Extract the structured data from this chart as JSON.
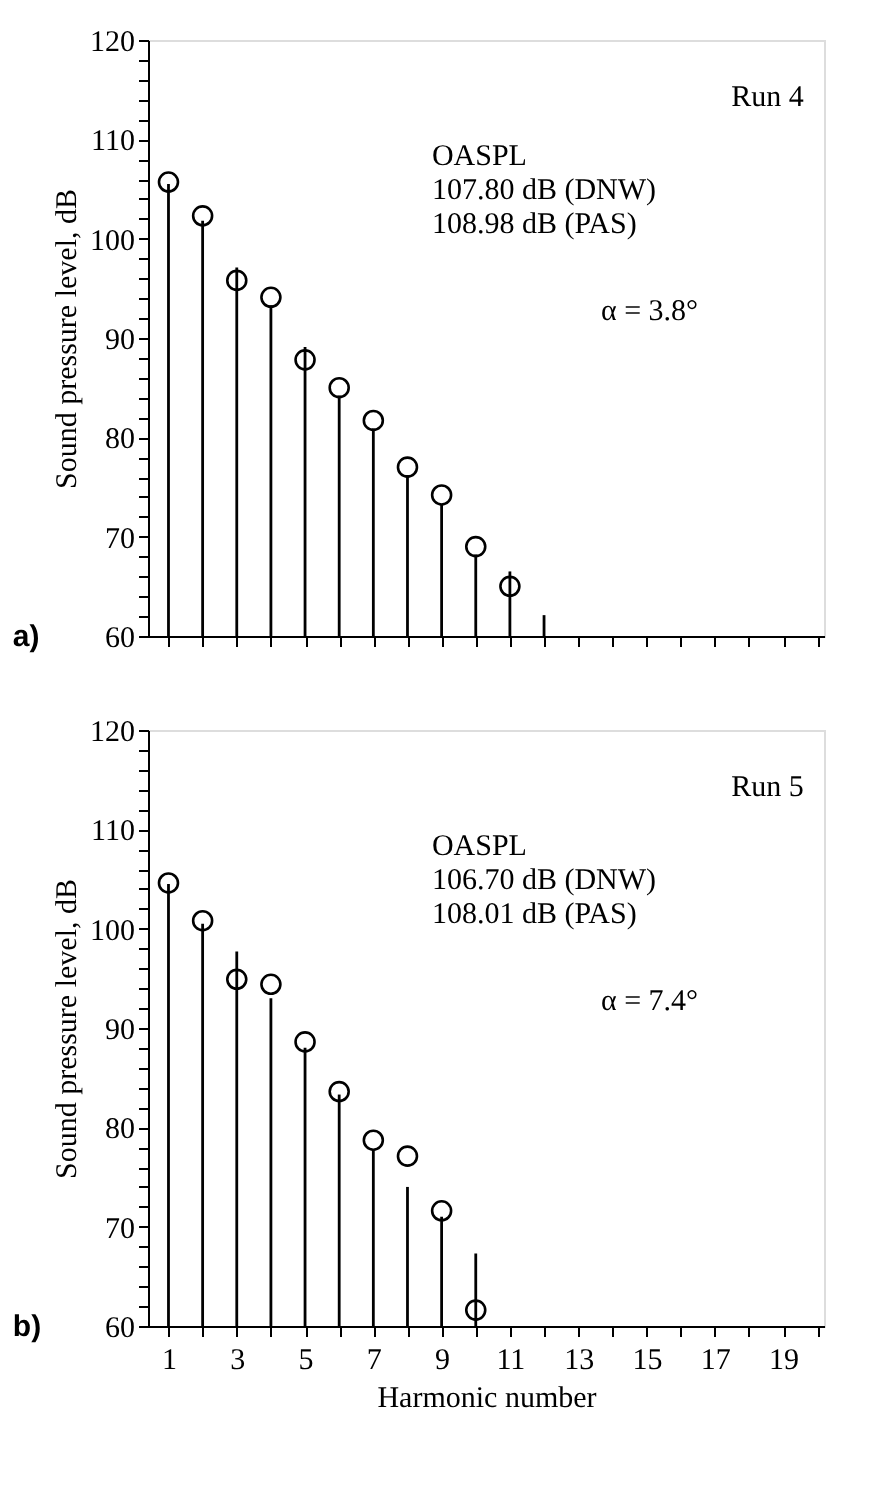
{
  "chart_data": [
    {
      "type": "bar",
      "ylabel": "Sound pressure level, dB",
      "annotations": [
        "Run 4",
        "OASPL\n107.80 dB (DNW)\n108.98 dB (PAS)",
        "α = 3.8°",
        "a)"
      ],
      "xlim": [
        0.4,
        20.2
      ],
      "ylim": [
        60,
        120
      ],
      "xticks": [
        1,
        {
          "value": 2,
          "label": null
        },
        3,
        {
          "value": 4,
          "label": null
        },
        5,
        {
          "value": 6,
          "label": null
        },
        7,
        {
          "value": 8,
          "label": null
        },
        9,
        {
          "value": 10,
          "label": null
        },
        11,
        {
          "value": 12,
          "label": null
        },
        13,
        {
          "value": 14,
          "label": null
        },
        15,
        {
          "value": 16,
          "label": null
        },
        17,
        {
          "value": 18,
          "label": null
        },
        19,
        {
          "value": 20,
          "label": null
        }
      ],
      "yticks": [
        60,
        {
          "value": 62,
          "label": null
        },
        {
          "value": 64,
          "label": null
        },
        {
          "value": 66,
          "label": null
        },
        {
          "value": 68,
          "label": null
        },
        70,
        {
          "value": 72,
          "label": null
        },
        {
          "value": 74,
          "label": null
        },
        {
          "value": 76,
          "label": null
        },
        {
          "value": 78,
          "label": null
        },
        80,
        {
          "value": 82,
          "label": null
        },
        {
          "value": 84,
          "label": null
        },
        {
          "value": 86,
          "label": null
        },
        {
          "value": 88,
          "label": null
        },
        90,
        {
          "value": 92,
          "label": null
        },
        {
          "value": 94,
          "label": null
        },
        {
          "value": 96,
          "label": null
        },
        {
          "value": 98,
          "label": null
        },
        100,
        {
          "value": 102,
          "label": null
        },
        {
          "value": 104,
          "label": null
        },
        {
          "value": 106,
          "label": null
        },
        {
          "value": 108,
          "label": null
        },
        110,
        {
          "value": 112,
          "label": null
        },
        {
          "value": 114,
          "label": null
        },
        {
          "value": 116,
          "label": null
        },
        {
          "value": 118,
          "label": null
        },
        120
      ],
      "tick_labels": "y",
      "series": [
        {
          "color": "#000000",
          "x": [
            1,
            2,
            3,
            4,
            5,
            6,
            7,
            8,
            9,
            10,
            11,
            12
          ],
          "values": [
            105.5,
            101.8,
            97.1,
            93.3,
            89.1,
            84.2,
            80.9,
            76.2,
            73.3,
            68.2,
            66.5,
            62.1
          ]
        },
        {
          "type": "scatter",
          "marker": "circle",
          "color": "#000000",
          "x": [
            1,
            2,
            3,
            4,
            5,
            6,
            7,
            8,
            9,
            10,
            11
          ],
          "values": [
            105.7,
            102.3,
            95.8,
            94.1,
            87.8,
            85.0,
            81.7,
            77.0,
            74.2,
            69.0,
            65.0
          ]
        }
      ]
    },
    {
      "type": "bar",
      "xlabel": "Harmonic number",
      "ylabel": "Sound pressure level, dB",
      "annotations": [
        "Run 5",
        "OASPL\n106.70 dB (DNW)\n108.01 dB (PAS)",
        "α = 7.4°",
        "b)"
      ],
      "xlim": [
        0.4,
        20.2
      ],
      "ylim": [
        60,
        120
      ],
      "xticks": [
        1,
        {
          "value": 2,
          "label": null
        },
        3,
        {
          "value": 4,
          "label": null
        },
        5,
        {
          "value": 6,
          "label": null
        },
        7,
        {
          "value": 8,
          "label": null
        },
        9,
        {
          "value": 10,
          "label": null
        },
        11,
        {
          "value": 12,
          "label": null
        },
        13,
        {
          "value": 14,
          "label": null
        },
        15,
        {
          "value": 16,
          "label": null
        },
        17,
        {
          "value": 18,
          "label": null
        },
        19,
        {
          "value": 20,
          "label": null
        }
      ],
      "yticks": [
        60,
        {
          "value": 62,
          "label": null
        },
        {
          "value": 64,
          "label": null
        },
        {
          "value": 66,
          "label": null
        },
        {
          "value": 68,
          "label": null
        },
        70,
        {
          "value": 72,
          "label": null
        },
        {
          "value": 74,
          "label": null
        },
        {
          "value": 76,
          "label": null
        },
        {
          "value": 78,
          "label": null
        },
        80,
        {
          "value": 82,
          "label": null
        },
        {
          "value": 84,
          "label": null
        },
        {
          "value": 86,
          "label": null
        },
        {
          "value": 88,
          "label": null
        },
        90,
        {
          "value": 92,
          "label": null
        },
        {
          "value": 94,
          "label": null
        },
        {
          "value": 96,
          "label": null
        },
        {
          "value": 98,
          "label": null
        },
        100,
        {
          "value": 102,
          "label": null
        },
        {
          "value": 104,
          "label": null
        },
        {
          "value": 106,
          "label": null
        },
        {
          "value": 108,
          "label": null
        },
        110,
        {
          "value": 112,
          "label": null
        },
        {
          "value": 114,
          "label": null
        },
        {
          "value": 116,
          "label": null
        },
        {
          "value": 118,
          "label": null
        },
        120
      ],
      "series": [
        {
          "color": "#000000",
          "x": [
            1,
            2,
            3,
            4,
            5,
            6,
            7,
            8,
            9,
            10
          ],
          "values": [
            104.5,
            100.5,
            97.7,
            93.0,
            88.0,
            83.3,
            77.8,
            74.0,
            71.0,
            67.3
          ]
        },
        {
          "type": "scatter",
          "marker": "circle",
          "color": "#000000",
          "x": [
            1,
            2,
            3,
            4,
            5,
            6,
            7,
            8,
            9,
            10
          ],
          "values": [
            104.6,
            100.8,
            94.9,
            94.4,
            88.6,
            83.6,
            78.7,
            77.1,
            71.6,
            61.6
          ]
        }
      ]
    }
  ]
}
